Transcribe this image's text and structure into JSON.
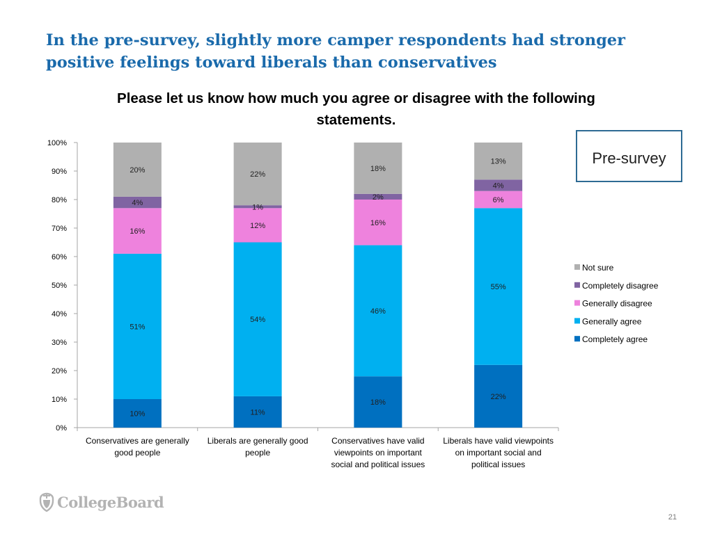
{
  "slide": {
    "title": "In the pre-survey, slightly more camper respondents had stronger positive feelings toward liberals than conservatives",
    "badge": "Pre-survey",
    "logo_text": "CollegeBoard",
    "page_number": "21"
  },
  "chart_data": {
    "type": "bar",
    "stacked": true,
    "title": "Please let us know how much you agree or disagree with the following statements.",
    "xlabel": "",
    "ylabel": "",
    "ylim": [
      0,
      100
    ],
    "y_ticks": [
      "0%",
      "10%",
      "20%",
      "30%",
      "40%",
      "50%",
      "60%",
      "70%",
      "80%",
      "90%",
      "100%"
    ],
    "categories": [
      [
        "Conservatives are generally",
        "good people"
      ],
      [
        "Liberals are generally good",
        "people"
      ],
      [
        "Conservatives have valid",
        "viewpoints on important",
        "social and political issues"
      ],
      [
        "Liberals have valid viewpoints",
        "on important social and",
        "political issues"
      ]
    ],
    "series": [
      {
        "name": "Completely agree",
        "color": "#0070c0",
        "values": [
          10,
          11,
          18,
          22
        ],
        "labels": [
          "10%",
          "11%",
          "18%",
          "22%"
        ]
      },
      {
        "name": "Generally agree",
        "color": "#00b0f0",
        "values": [
          51,
          54,
          46,
          55
        ],
        "labels": [
          "51%",
          "54%",
          "46%",
          "55%"
        ]
      },
      {
        "name": "Generally disagree",
        "color": "#ee82dd",
        "values": [
          16,
          12,
          16,
          6
        ],
        "labels": [
          "16%",
          "12%",
          "16%",
          "6%"
        ]
      },
      {
        "name": "Completely disagree",
        "color": "#8064a2",
        "values": [
          4,
          1,
          2,
          4
        ],
        "labels": [
          "4%",
          "1%",
          "2%",
          "4%"
        ]
      },
      {
        "name": "Not sure",
        "color": "#b0b0b0",
        "values": [
          20,
          22,
          18,
          13
        ],
        "labels": [
          "20%",
          "22%",
          "18%",
          "13%"
        ]
      }
    ],
    "legend_order": [
      "Not sure",
      "Completely disagree",
      "Generally disagree",
      "Generally agree",
      "Completely agree"
    ],
    "legend_position": "right",
    "grid": false
  }
}
